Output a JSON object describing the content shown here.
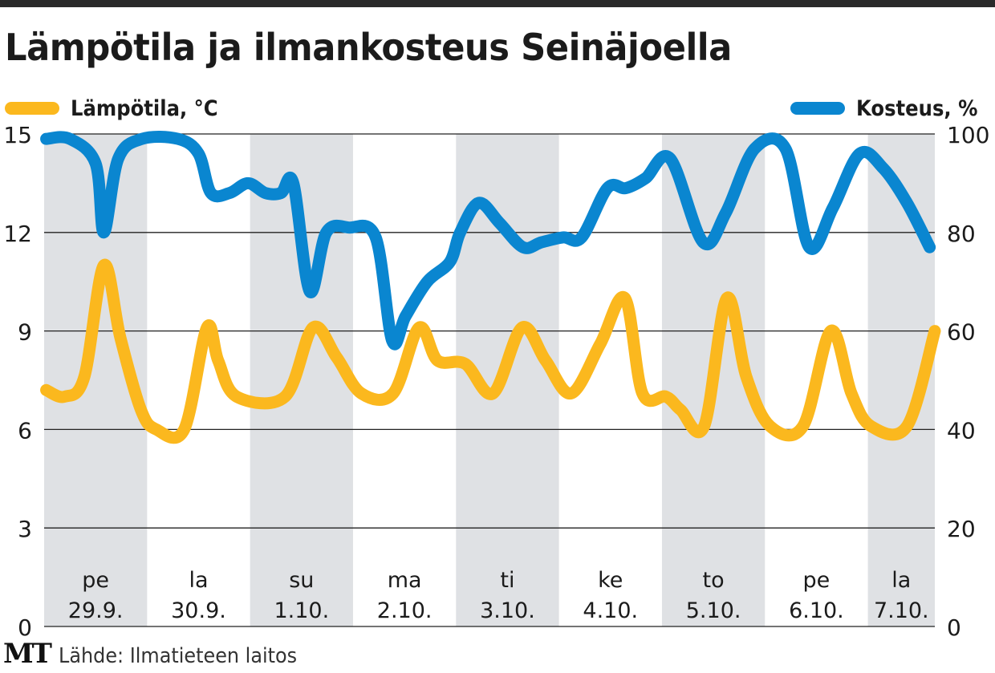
{
  "chart_data": {
    "type": "line",
    "title": "Lämpötila ja ilmankosteus Seinäjoella",
    "source": "Lähde: Ilmatieteen laitos",
    "logo": "MT",
    "colors": {
      "temperature": "#fbb81e",
      "humidity": "#0a86d0",
      "band": "#dfe1e4",
      "grid": "#222222"
    },
    "x_unit": "day index from start of pe 29.9.",
    "xlim": [
      0,
      8.65
    ],
    "days": [
      {
        "weekday": "pe",
        "date": "29.9.",
        "start": 0.0,
        "end": 1.0
      },
      {
        "weekday": "la",
        "date": "30.9.",
        "start": 1.0,
        "end": 2.0
      },
      {
        "weekday": "su",
        "date": "1.10.",
        "start": 2.0,
        "end": 3.0
      },
      {
        "weekday": "ma",
        "date": "2.10.",
        "start": 3.0,
        "end": 4.0
      },
      {
        "weekday": "ti",
        "date": "3.10.",
        "start": 4.0,
        "end": 5.0
      },
      {
        "weekday": "ke",
        "date": "4.10.",
        "start": 5.0,
        "end": 6.0
      },
      {
        "weekday": "to",
        "date": "5.10.",
        "start": 6.0,
        "end": 7.0
      },
      {
        "weekday": "pe",
        "date": "6.10.",
        "start": 7.0,
        "end": 8.0
      },
      {
        "weekday": "la",
        "date": "7.10.",
        "start": 8.0,
        "end": 8.65
      }
    ],
    "y_left": {
      "label": "Lämpötila, °C",
      "ylim": [
        0,
        15
      ],
      "ticks": [
        0,
        3,
        6,
        9,
        12,
        15
      ]
    },
    "y_right": {
      "label": "Kosteus, %",
      "ylim": [
        0,
        100
      ],
      "ticks": [
        0,
        20,
        40,
        60,
        80,
        100
      ]
    },
    "grid": true,
    "legend": [
      {
        "name": "Lämpötila, °C",
        "position": "top-left"
      },
      {
        "name": "Kosteus, %",
        "position": "top-right"
      }
    ],
    "series": [
      {
        "name": "Lämpötila, °C",
        "axis": "left",
        "x": [
          0.02,
          0.2,
          0.39,
          0.58,
          0.74,
          0.94,
          1.09,
          1.36,
          1.58,
          1.69,
          1.87,
          2.34,
          2.61,
          2.84,
          3.08,
          3.39,
          3.64,
          3.82,
          4.09,
          4.36,
          4.64,
          4.87,
          5.12,
          5.4,
          5.64,
          5.81,
          6.04,
          6.18,
          6.41,
          6.63,
          6.82,
          7.05,
          7.37,
          7.64,
          7.84,
          8.03,
          8.38,
          8.65
        ],
        "values": [
          7.2,
          7.0,
          7.6,
          11.0,
          8.8,
          6.6,
          6.0,
          6.0,
          9.1,
          8.1,
          7.0,
          7.0,
          9.1,
          8.2,
          7.1,
          7.1,
          9.1,
          8.1,
          8.0,
          7.1,
          9.1,
          8.1,
          7.1,
          8.6,
          10.0,
          7.1,
          7.0,
          6.6,
          6.1,
          10.0,
          7.6,
          6.1,
          6.1,
          9.0,
          7.1,
          6.1,
          6.1,
          9.0
        ]
      },
      {
        "name": "Kosteus, %",
        "axis": "right",
        "x": [
          0.02,
          0.25,
          0.5,
          0.58,
          0.72,
          0.95,
          1.3,
          1.5,
          1.62,
          1.8,
          1.98,
          2.15,
          2.3,
          2.42,
          2.58,
          2.74,
          2.96,
          3.22,
          3.38,
          3.51,
          3.72,
          3.94,
          4.04,
          4.22,
          4.42,
          4.65,
          4.83,
          5.04,
          5.22,
          5.47,
          5.65,
          5.84,
          6.08,
          6.4,
          6.62,
          6.9,
          7.2,
          7.43,
          7.66,
          7.92,
          8.15,
          8.38,
          8.6
        ],
        "values": [
          99,
          99,
          94,
          80,
          95,
          99,
          99,
          96,
          88,
          88,
          90,
          88,
          88,
          90,
          68,
          80,
          81,
          79,
          58,
          63,
          70,
          74,
          80,
          86,
          82,
          77,
          78,
          79,
          79,
          89,
          89,
          91,
          95,
          78,
          84,
          97,
          97,
          77,
          85,
          96,
          93,
          86,
          77
        ]
      }
    ]
  }
}
